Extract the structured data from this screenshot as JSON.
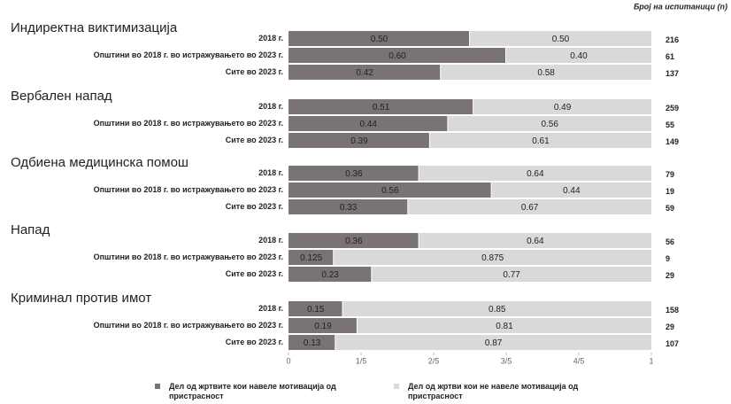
{
  "chart_data": {
    "type": "bar",
    "orientation": "horizontal",
    "stacked": true,
    "n_label": "Број на испитаници (n)",
    "xlim": [
      0,
      1
    ],
    "xticks": [
      0,
      {
        "value": 0.2,
        "label": "1/5"
      },
      {
        "value": 0.4,
        "label": "2/5"
      },
      {
        "value": 0.6,
        "label": "3/5"
      },
      {
        "value": 0.8,
        "label": "4/5"
      },
      1
    ],
    "series": [
      {
        "name": "Дел од жртвите кои навеле мотивација од пристрасност",
        "color": "#7a7373"
      },
      {
        "name": "Дел од жртви кои не навеле мотивација од пристрасност",
        "color": "#d9d9d9"
      }
    ],
    "panels": [
      {
        "title": "Индиректна виктимизација",
        "categories": [
          "2018 г.",
          "Општини во 2018 г. во истражувањето во 2023 г.",
          "Сите во 2023 г."
        ],
        "values": [
          [
            0.5,
            0.6,
            0.42
          ],
          [
            0.5,
            0.4,
            0.58
          ]
        ],
        "value_labels": [
          [
            "0.50",
            "0.60",
            "0.42"
          ],
          [
            "0.50",
            "0.40",
            "0.58"
          ]
        ],
        "n": [
          216,
          61,
          137
        ]
      },
      {
        "title": "Вербален напад",
        "categories": [
          "2018 г.",
          "Општини во 2018 г. во истражувањето во 2023 г.",
          "Сите во 2023 г."
        ],
        "values": [
          [
            0.51,
            0.44,
            0.39
          ],
          [
            0.49,
            0.56,
            0.61
          ]
        ],
        "value_labels": [
          [
            "0.51",
            "0.44",
            "0.39"
          ],
          [
            "0.49",
            "0.56",
            "0.61"
          ]
        ],
        "n": [
          259,
          55,
          149
        ]
      },
      {
        "title": "Одбиена медицинска помош",
        "categories": [
          "2018 г.",
          "Општини во 2018 г. во истражувањето во 2023 г.",
          "Сите во 2023 г."
        ],
        "values": [
          [
            0.36,
            0.56,
            0.33
          ],
          [
            0.64,
            0.44,
            0.67
          ]
        ],
        "value_labels": [
          [
            "0.36",
            "0.56",
            "0.33"
          ],
          [
            "0.64",
            "0.44",
            "0.67"
          ]
        ],
        "n": [
          79,
          19,
          59
        ]
      },
      {
        "title": "Напад",
        "categories": [
          "2018 г.",
          "Општини во 2018 г. во истражувањето во 2023 г.",
          "Сите во 2023 г."
        ],
        "values": [
          [
            0.36,
            0.125,
            0.23
          ],
          [
            0.64,
            0.875,
            0.77
          ]
        ],
        "value_labels": [
          [
            "0.36",
            "0.125",
            "0.23"
          ],
          [
            "0.64",
            "0.875",
            "0.77"
          ]
        ],
        "n": [
          56,
          9,
          29
        ]
      },
      {
        "title": "Криминал против имот",
        "categories": [
          "2018 г.",
          "Општини во 2018 г. во истражувањето во 2023 г.",
          "Сите во 2023 г."
        ],
        "values": [
          [
            0.15,
            0.19,
            0.13
          ],
          [
            0.85,
            0.81,
            0.87
          ]
        ],
        "value_labels": [
          [
            "0.15",
            "0.19",
            "0.13"
          ],
          [
            "0.85",
            "0.81",
            "0.87"
          ]
        ],
        "n": [
          158,
          29,
          107
        ]
      }
    ]
  }
}
